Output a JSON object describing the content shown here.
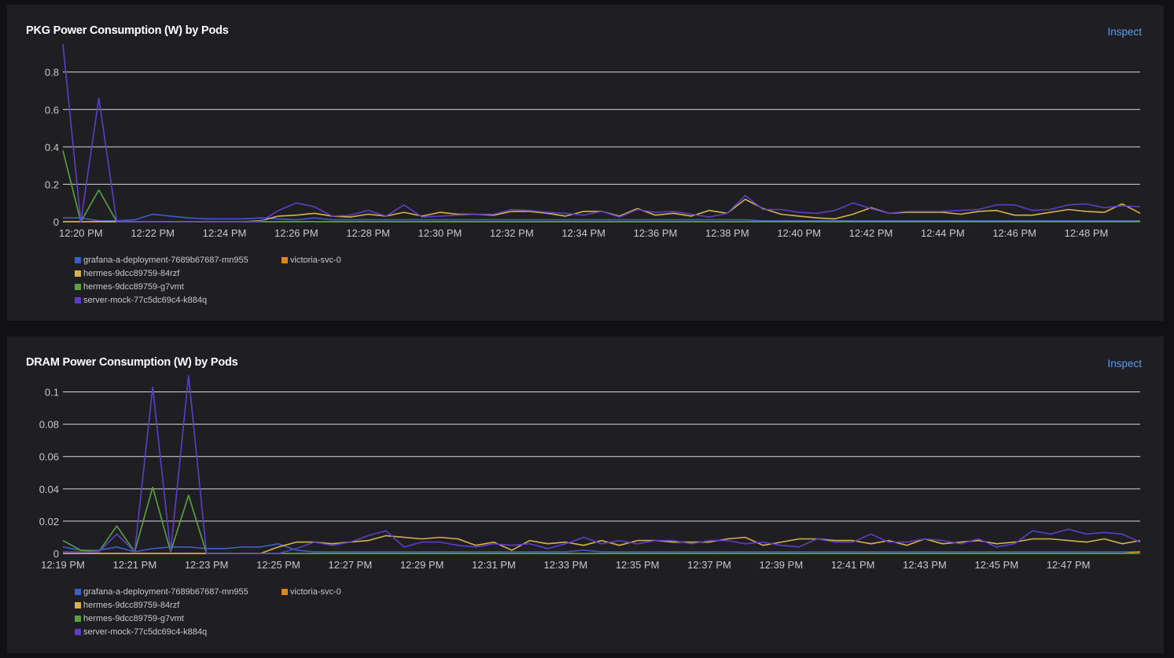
{
  "colors": {
    "grafana": "#3b5fc9",
    "victoria": "#e0861f",
    "hermes_84rzf": "#d6b24a",
    "hermes_g7vmt": "#58a33c",
    "server_mock": "#5c3fc4"
  },
  "panels": [
    {
      "title": "PKG Power Consumption (W) by Pods",
      "inspect_label": "Inspect",
      "legend": [
        {
          "label": "grafana-a-deployment-7689b67687-mn955",
          "color": "#3b5fc9"
        },
        {
          "label": "victoria-svc-0",
          "color": "#e0861f"
        },
        {
          "label": "hermes-9dcc89759-84rzf",
          "color": "#d6b24a"
        },
        {
          "label": "hermes-9dcc89759-g7vmt",
          "color": "#58a33c"
        },
        {
          "label": "server-mock-77c5dc69c4-k884q",
          "color": "#5c3fc4"
        }
      ]
    },
    {
      "title": "DRAM Power Consumption (W) by Pods",
      "inspect_label": "Inspect",
      "legend": [
        {
          "label": "grafana-a-deployment-7689b67687-mn955",
          "color": "#3b5fc9"
        },
        {
          "label": "victoria-svc-0",
          "color": "#e0861f"
        },
        {
          "label": "hermes-9dcc89759-84rzf",
          "color": "#d6b24a"
        },
        {
          "label": "hermes-9dcc89759-g7vmt",
          "color": "#58a33c"
        },
        {
          "label": "server-mock-77c5dc69c4-k884q",
          "color": "#5c3fc4"
        }
      ]
    }
  ],
  "chart_data": [
    {
      "type": "line",
      "title": "PKG Power Consumption (W) by Pods",
      "ylim": [
        0,
        0.95
      ],
      "yticks": [
        0,
        0.2,
        0.4,
        0.6,
        0.8
      ],
      "ytick_labels": [
        "0",
        "0.2",
        "0.4",
        "0.6",
        "0.8"
      ],
      "xlim": [
        "12:20 PM",
        "12:49:30 PM"
      ],
      "xticks": [
        "12:20 PM",
        "12:22 PM",
        "12:24 PM",
        "12:26 PM",
        "12:28 PM",
        "12:30 PM",
        "12:32 PM",
        "12:34 PM",
        "12:36 PM",
        "12:38 PM",
        "12:40 PM",
        "12:42 PM",
        "12:44 PM",
        "12:46 PM",
        "12:48 PM"
      ],
      "grid": true,
      "legend_position": "bottom-left",
      "x": [
        "12:19:30",
        "12:20:00",
        "12:20:30",
        "12:21:00",
        "12:21:30",
        "12:22:00",
        "12:22:30",
        "12:23:00",
        "12:23:30",
        "12:24:00",
        "12:24:30",
        "12:25:00",
        "12:25:30",
        "12:26:00",
        "12:26:30",
        "12:27:00",
        "12:27:30",
        "12:28:00",
        "12:28:30",
        "12:29:00",
        "12:29:30",
        "12:30:00",
        "12:30:30",
        "12:31:00",
        "12:31:30",
        "12:32:00",
        "12:32:30",
        "12:33:00",
        "12:33:30",
        "12:34:00",
        "12:34:30",
        "12:35:00",
        "12:35:30",
        "12:36:00",
        "12:36:30",
        "12:37:00",
        "12:37:30",
        "12:38:00",
        "12:38:30",
        "12:39:00",
        "12:39:30",
        "12:40:00",
        "12:40:30",
        "12:41:00",
        "12:41:30",
        "12:42:00",
        "12:42:30",
        "12:43:00",
        "12:43:30",
        "12:44:00",
        "12:44:30",
        "12:45:00",
        "12:45:30",
        "12:46:00",
        "12:46:30",
        "12:47:00",
        "12:47:30",
        "12:48:00",
        "12:48:30",
        "12:49:00",
        "12:49:30"
      ],
      "series": [
        {
          "name": "grafana-a-deployment-7689b67687-mn955",
          "color": "#3b5fc9",
          "values": [
            0.02,
            0.02,
            0.005,
            0.005,
            0.01,
            0.04,
            0.03,
            0.02,
            0.015,
            0.015,
            0.015,
            0.02,
            0.015,
            0.01,
            0.02,
            0.01,
            0.01,
            0.01,
            0.01,
            0.01,
            0.01,
            0.01,
            0.01,
            0.01,
            0.01,
            0.01,
            0.01,
            0.01,
            0.01,
            0.01,
            0.01,
            0.01,
            0.01,
            0.01,
            0.01,
            0.01,
            0.01,
            0.01,
            0.01,
            0.005,
            0.005,
            0.005,
            0.005,
            0.005,
            0.005,
            0.005,
            0.005,
            0.005,
            0.005,
            0.005,
            0.005,
            0.005,
            0.005,
            0.005,
            0.005,
            0.005,
            0.005,
            0.005,
            0.005,
            0.005,
            0.005
          ]
        },
        {
          "name": "victoria-svc-0",
          "color": "#e0861f",
          "values": [
            0,
            0,
            0,
            0,
            0,
            0,
            0,
            0,
            0,
            0,
            0,
            0,
            0,
            0,
            0,
            0,
            0,
            0,
            0,
            0,
            0,
            0,
            0,
            0,
            0,
            0,
            0,
            0,
            0,
            0,
            0,
            0,
            0,
            0,
            0,
            0,
            0,
            0,
            0,
            0,
            0,
            0,
            0,
            0,
            0,
            0,
            0,
            0,
            0,
            0,
            0,
            0,
            0,
            0,
            0,
            0,
            0,
            0,
            0,
            0,
            0
          ]
        },
        {
          "name": "hermes-9dcc89759-84rzf",
          "color": "#d6b24a",
          "values": [
            0,
            0,
            0,
            0,
            0,
            0,
            0,
            0,
            0,
            0,
            0,
            0.005,
            0.03,
            0.035,
            0.045,
            0.03,
            0.025,
            0.04,
            0.03,
            0.05,
            0.03,
            0.05,
            0.04,
            0.04,
            0.035,
            0.055,
            0.055,
            0.045,
            0.03,
            0.055,
            0.055,
            0.03,
            0.07,
            0.035,
            0.045,
            0.03,
            0.06,
            0.045,
            0.12,
            0.07,
            0.04,
            0.03,
            0.02,
            0.015,
            0.04,
            0.075,
            0.045,
            0.05,
            0.05,
            0.05,
            0.04,
            0.055,
            0.06,
            0.035,
            0.035,
            0.05,
            0.065,
            0.055,
            0.05,
            0.095,
            0.045
          ]
        },
        {
          "name": "hermes-9dcc89759-g7vmt",
          "color": "#58a33c",
          "values": [
            0.38,
            0,
            0.17,
            0,
            0,
            0,
            0,
            0,
            0,
            0,
            0,
            0,
            0,
            0,
            0,
            0,
            0,
            0,
            0,
            0,
            0,
            0,
            0,
            0,
            0,
            0,
            0,
            0,
            0,
            0,
            0,
            0,
            0,
            0,
            0,
            0,
            0,
            0,
            0,
            0,
            0,
            0,
            0,
            0,
            0,
            0,
            0,
            0,
            0,
            0,
            0,
            0,
            0,
            0,
            0,
            0,
            0,
            0,
            0,
            0,
            0
          ]
        },
        {
          "name": "server-mock-77c5dc69c4-k884q",
          "color": "#5c3fc4",
          "values": [
            0.95,
            0,
            0.66,
            0,
            0,
            0,
            0,
            0,
            0,
            0,
            0,
            0,
            0.06,
            0.1,
            0.08,
            0.03,
            0.035,
            0.06,
            0.03,
            0.09,
            0.025,
            0.03,
            0.035,
            0.04,
            0.04,
            0.065,
            0.06,
            0.05,
            0.045,
            0.035,
            0.055,
            0.025,
            0.065,
            0.05,
            0.055,
            0.04,
            0.025,
            0.045,
            0.14,
            0.065,
            0.065,
            0.05,
            0.045,
            0.06,
            0.1,
            0.07,
            0.045,
            0.055,
            0.055,
            0.055,
            0.06,
            0.065,
            0.09,
            0.09,
            0.06,
            0.065,
            0.09,
            0.095,
            0.075,
            0.085,
            0.08
          ]
        }
      ]
    },
    {
      "type": "line",
      "title": "DRAM Power Consumption (W) by Pods",
      "ylim": [
        0,
        0.11
      ],
      "yticks": [
        0,
        0.02,
        0.04,
        0.06,
        0.08,
        0.1
      ],
      "ytick_labels": [
        "0",
        "0.02",
        "0.04",
        "0.06",
        "0.08",
        "0.1"
      ],
      "xlim": [
        "12:19 PM",
        "12:49 PM"
      ],
      "xticks": [
        "12:19 PM",
        "12:21 PM",
        "12:23 PM",
        "12:25 PM",
        "12:27 PM",
        "12:29 PM",
        "12:31 PM",
        "12:33 PM",
        "12:35 PM",
        "12:37 PM",
        "12:39 PM",
        "12:41 PM",
        "12:43 PM",
        "12:45 PM",
        "12:47 PM"
      ],
      "grid": true,
      "legend_position": "bottom-left",
      "x": [
        "12:19:00",
        "12:19:30",
        "12:20:00",
        "12:20:30",
        "12:21:00",
        "12:21:30",
        "12:22:00",
        "12:22:30",
        "12:23:00",
        "12:23:30",
        "12:24:00",
        "12:24:30",
        "12:25:00",
        "12:25:30",
        "12:26:00",
        "12:26:30",
        "12:27:00",
        "12:27:30",
        "12:28:00",
        "12:28:30",
        "12:29:00",
        "12:29:30",
        "12:30:00",
        "12:30:30",
        "12:31:00",
        "12:31:30",
        "12:32:00",
        "12:32:30",
        "12:33:00",
        "12:33:30",
        "12:34:00",
        "12:34:30",
        "12:35:00",
        "12:35:30",
        "12:36:00",
        "12:36:30",
        "12:37:00",
        "12:37:30",
        "12:38:00",
        "12:38:30",
        "12:39:00",
        "12:39:30",
        "12:40:00",
        "12:40:30",
        "12:41:00",
        "12:41:30",
        "12:42:00",
        "12:42:30",
        "12:43:00",
        "12:43:30",
        "12:44:00",
        "12:44:30",
        "12:45:00",
        "12:45:30",
        "12:46:00",
        "12:46:30",
        "12:47:00",
        "12:47:30",
        "12:48:00",
        "12:48:30",
        "12:49:00"
      ],
      "series": [
        {
          "name": "grafana-a-deployment-7689b67687-mn955",
          "color": "#3b5fc9",
          "values": [
            0.004,
            0.002,
            0.002,
            0.004,
            0.001,
            0.003,
            0.004,
            0.004,
            0.003,
            0.003,
            0.004,
            0.004,
            0.006,
            0.002,
            0.001,
            0.001,
            0.001,
            0.001,
            0.001,
            0.001,
            0.001,
            0.001,
            0.001,
            0.001,
            0.001,
            0.001,
            0.001,
            0.001,
            0.001,
            0.002,
            0.001,
            0.001,
            0.001,
            0.001,
            0.001,
            0.001,
            0.001,
            0.001,
            0.001,
            0.001,
            0.001,
            0.001,
            0.001,
            0.001,
            0.001,
            0.001,
            0.001,
            0.001,
            0.001,
            0.001,
            0.001,
            0.001,
            0.001,
            0.001,
            0.001,
            0.001,
            0.001,
            0.001,
            0.001,
            0.001,
            0.001
          ]
        },
        {
          "name": "victoria-svc-0",
          "color": "#e0861f",
          "values": [
            0,
            0,
            0,
            0,
            0,
            0,
            0,
            0,
            0,
            0,
            0,
            0,
            0,
            0,
            0,
            0,
            0,
            0,
            0,
            0,
            0,
            0,
            0,
            0,
            0,
            0,
            0,
            0,
            0,
            0,
            0,
            0,
            0,
            0,
            0,
            0,
            0,
            0,
            0,
            0,
            0,
            0,
            0,
            0,
            0,
            0,
            0,
            0,
            0,
            0,
            0,
            0,
            0,
            0,
            0,
            0,
            0,
            0,
            0,
            0,
            0.001
          ]
        },
        {
          "name": "hermes-9dcc89759-84rzf",
          "color": "#d6b24a",
          "values": [
            0,
            0,
            0,
            0,
            0,
            0,
            0,
            0,
            0,
            0,
            0,
            0,
            0.004,
            0.007,
            0.007,
            0.006,
            0.007,
            0.008,
            0.011,
            0.01,
            0.009,
            0.01,
            0.009,
            0.005,
            0.007,
            0.002,
            0.008,
            0.006,
            0.007,
            0.005,
            0.008,
            0.005,
            0.008,
            0.008,
            0.007,
            0.007,
            0.007,
            0.009,
            0.01,
            0.005,
            0.007,
            0.009,
            0.009,
            0.008,
            0.008,
            0.006,
            0.008,
            0.005,
            0.009,
            0.006,
            0.007,
            0.008,
            0.006,
            0.007,
            0.009,
            0.009,
            0.008,
            0.007,
            0.009,
            0.006,
            0.008
          ]
        },
        {
          "name": "hermes-9dcc89759-g7vmt",
          "color": "#58a33c",
          "values": [
            0.008,
            0.002,
            0.001,
            0.017,
            0.001,
            0.041,
            0.001,
            0.036,
            0,
            0,
            0,
            0,
            0,
            0,
            0,
            0,
            0,
            0,
            0,
            0,
            0,
            0,
            0,
            0,
            0,
            0,
            0,
            0,
            0,
            0,
            0,
            0,
            0,
            0,
            0,
            0,
            0,
            0,
            0,
            0,
            0,
            0,
            0,
            0,
            0,
            0,
            0,
            0,
            0,
            0,
            0,
            0,
            0,
            0,
            0,
            0,
            0,
            0,
            0,
            0,
            0
          ]
        },
        {
          "name": "server-mock-77c5dc69c4-k884q",
          "color": "#5c3fc4",
          "values": [
            0.001,
            0.001,
            0.001,
            0.012,
            0.001,
            0.103,
            0.001,
            0.11,
            0,
            0,
            0,
            0,
            0,
            0.003,
            0.007,
            0.005,
            0.007,
            0.011,
            0.014,
            0.004,
            0.007,
            0.007,
            0.005,
            0.004,
            0.006,
            0.005,
            0.006,
            0.003,
            0.006,
            0.01,
            0.006,
            0.008,
            0.006,
            0.008,
            0.008,
            0.006,
            0.008,
            0.008,
            0.006,
            0.007,
            0.005,
            0.004,
            0.009,
            0.007,
            0.007,
            0.012,
            0.007,
            0.007,
            0.009,
            0.008,
            0.006,
            0.009,
            0.004,
            0.006,
            0.014,
            0.012,
            0.015,
            0.012,
            0.013,
            0.012,
            0.007
          ]
        }
      ]
    }
  ]
}
